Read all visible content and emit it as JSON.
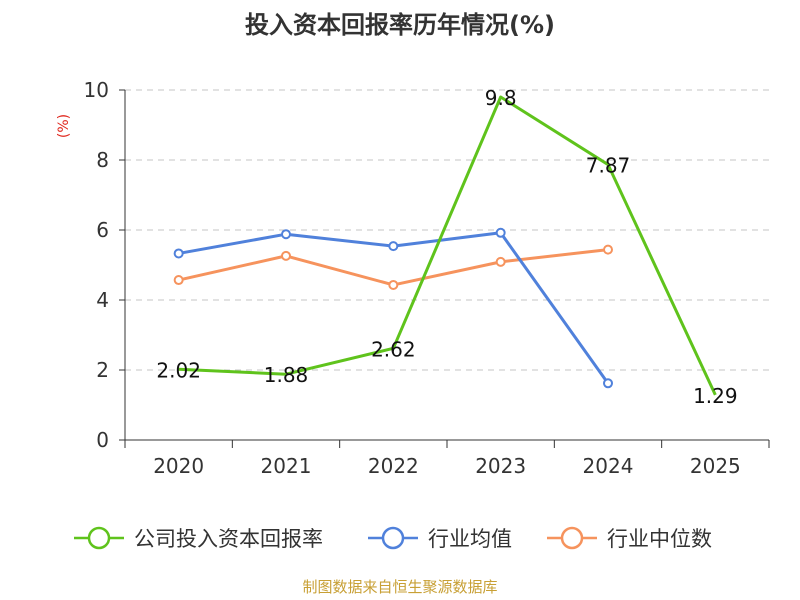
{
  "chart_data": {
    "type": "line",
    "title": "投入资本回报率历年情况(%)",
    "ylabel": "(%)",
    "xlabel": "",
    "categories": [
      "2020",
      "2021",
      "2022",
      "2023",
      "2024",
      "2025"
    ],
    "ylim": [
      0,
      10
    ],
    "yticks": [
      0,
      2,
      4,
      6,
      8,
      10
    ],
    "grid": true,
    "legend_position": "bottom",
    "series": [
      {
        "name": "公司投入资本回报率",
        "color": "#5fc31c",
        "values": [
          2.02,
          1.88,
          2.62,
          9.8,
          7.87,
          1.29
        ],
        "labels": [
          "2.02",
          "1.88",
          "2.62",
          "9.8",
          "7.87",
          "1.29"
        ]
      },
      {
        "name": "行业均值",
        "color": "#5081db",
        "values": [
          5.33,
          5.88,
          5.54,
          5.92,
          1.62,
          null
        ]
      },
      {
        "name": "行业中位数",
        "color": "#f6935d",
        "values": [
          4.57,
          5.26,
          4.43,
          5.09,
          5.44,
          null
        ]
      }
    ],
    "source": "制图数据来自恒生聚源数据库"
  }
}
